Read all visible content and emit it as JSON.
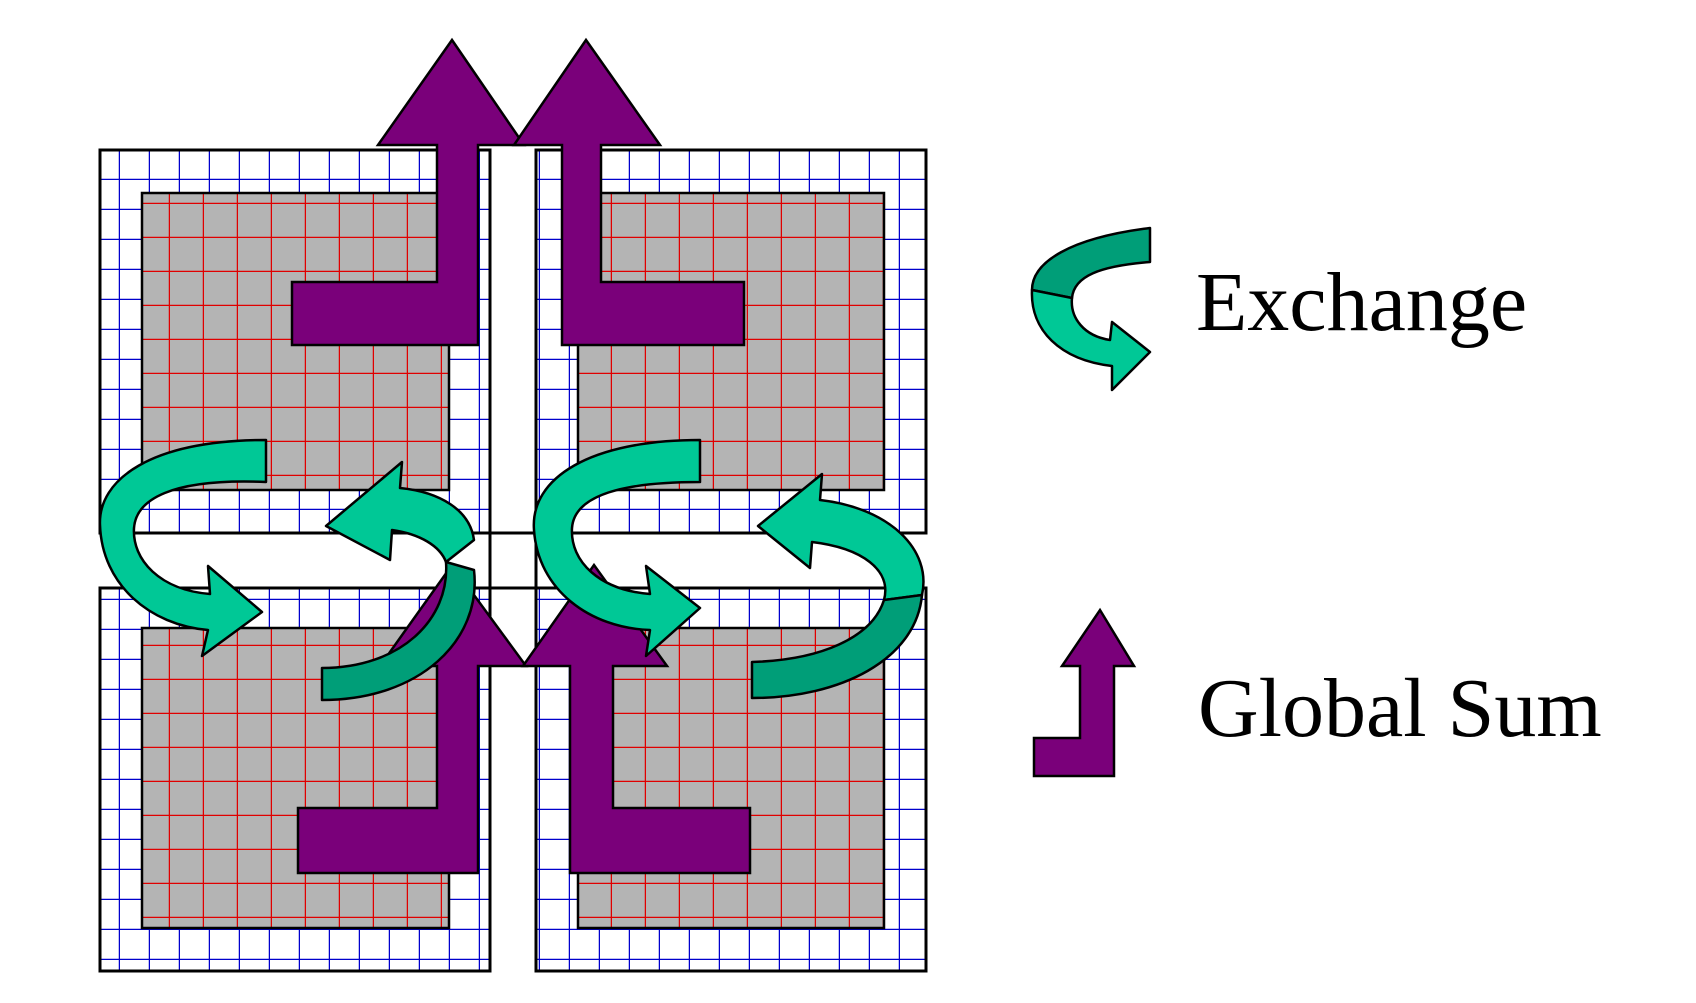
{
  "legend": {
    "exchange_label": "Exchange",
    "global_sum_label": "Global Sum"
  },
  "icons": {
    "exchange": "curved-arrow-icon",
    "global_sum": "l-shaped-arrow-icon"
  },
  "colors": {
    "fine_grid": "#0000cc",
    "coarse_grid": "#e00000",
    "interior_fill": "#b4b4b4",
    "exchange_arrow": "#00c896",
    "exchange_arrow_shadow": "#009e78",
    "global_sum_arrow": "#7a007a",
    "background": "#ffffff",
    "outline": "#000000"
  }
}
